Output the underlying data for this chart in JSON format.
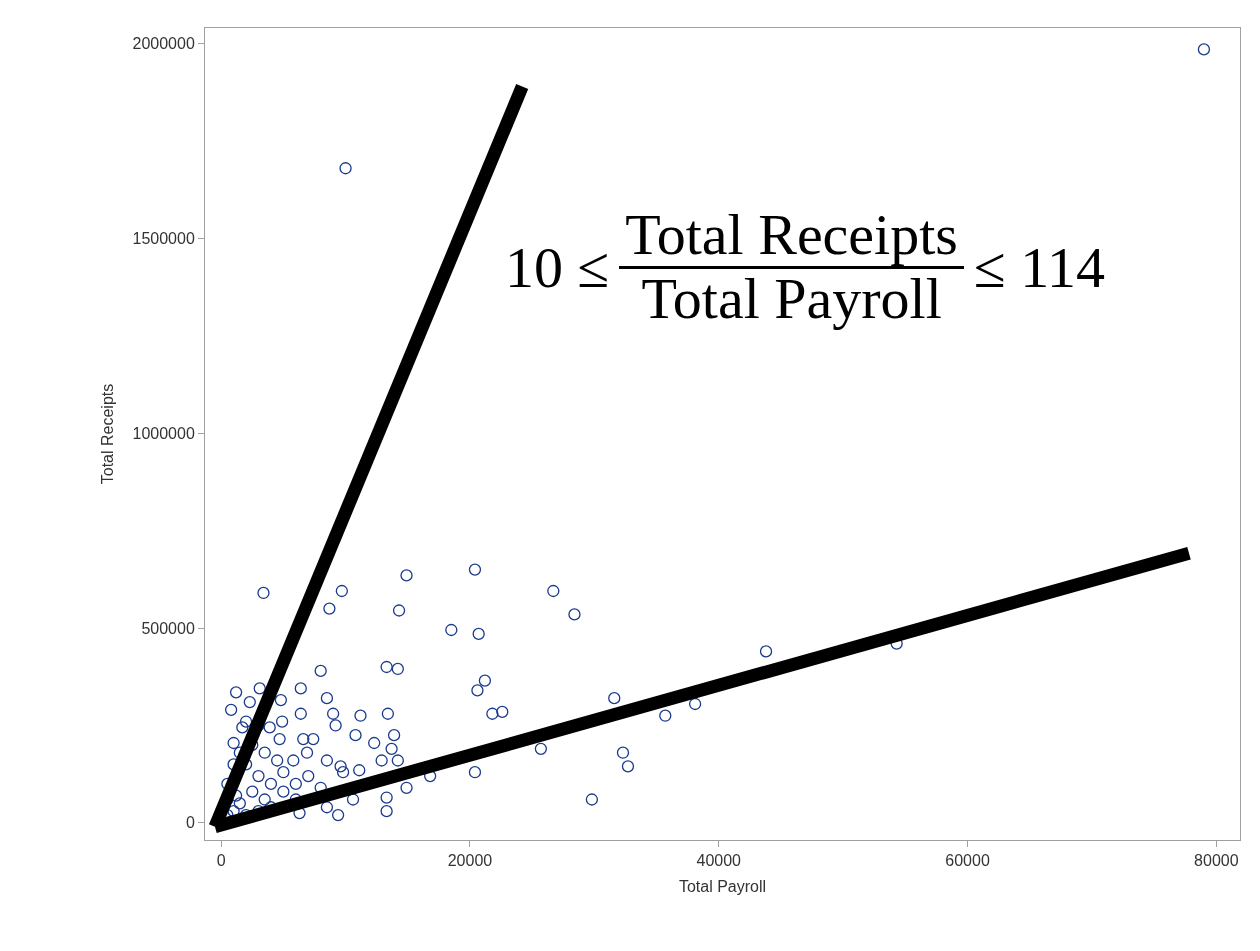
{
  "chart_data": {
    "type": "scatter",
    "xlabel": "Total Payroll",
    "ylabel": "Total Receipts",
    "xlim": [
      -1300,
      81900
    ],
    "ylim": [
      -44000,
      2040000
    ],
    "xticks": [
      0,
      20000,
      40000,
      60000,
      80000
    ],
    "yticks": [
      0,
      500000,
      1000000,
      1500000,
      2000000
    ],
    "grid": false,
    "annotations": [
      "10 ≤",
      "Total Receipts",
      "Total Payroll",
      "≤ 114"
    ],
    "series": [
      {
        "color": "#1a3a8c",
        "marker": "circle",
        "x": [
          3400,
          9700,
          8700,
          14900,
          14300,
          20400,
          26700,
          28400,
          18500,
          20700,
          8000,
          13300,
          14200,
          21200,
          20600,
          21800,
          22600,
          31600,
          1200,
          800,
          2300,
          3100,
          4800,
          6400,
          8500,
          9000,
          9200,
          6400,
          11200,
          13400,
          10800,
          12300,
          13900,
          13700,
          12900,
          14200,
          11100,
          25700,
          20400,
          16800,
          14900,
          13300,
          13300,
          29800,
          9400,
          7400,
          6600,
          4900,
          3900,
          1700,
          1000,
          9600,
          9800,
          8500,
          6900,
          5800,
          4700,
          10600,
          8500,
          6300,
          10000,
          79000,
          32300,
          32700,
          35700,
          38100,
          43800,
          54300,
          2000,
          3000,
          2500,
          1500,
          4000,
          3500,
          5000,
          500,
          1000,
          2000,
          3000,
          4000,
          5000,
          6000,
          7000,
          6000,
          500,
          1500,
          2500,
          3500,
          4500,
          3000,
          2000,
          1000,
          8000,
          500,
          1200
        ],
        "values": [
          590000,
          595000,
          550000,
          635000,
          545000,
          650000,
          595000,
          535000,
          495000,
          485000,
          390000,
          400000,
          395000,
          365000,
          340000,
          280000,
          285000,
          320000,
          335000,
          290000,
          310000,
          345000,
          315000,
          345000,
          320000,
          280000,
          250000,
          280000,
          275000,
          280000,
          225000,
          205000,
          225000,
          190000,
          160000,
          160000,
          135000,
          190000,
          130000,
          120000,
          90000,
          65000,
          30000,
          60000,
          20000,
          215000,
          215000,
          260000,
          245000,
          245000,
          205000,
          145000,
          130000,
          160000,
          180000,
          160000,
          215000,
          60000,
          40000,
          25000,
          1680000,
          1985000,
          180000,
          145000,
          275000,
          305000,
          440000,
          460000,
          150000,
          120000,
          80000,
          50000,
          100000,
          60000,
          80000,
          20000,
          30000,
          20000,
          30000,
          40000,
          130000,
          100000,
          120000,
          60000,
          60000,
          180000,
          200000,
          180000,
          160000,
          250000,
          260000,
          150000,
          90000,
          100000,
          70000
        ]
      },
      {
        "type": "line",
        "color": "#000000",
        "marker": "none",
        "x": [
          -500,
          24200
        ],
        "values": [
          -10000,
          1890000
        ]
      },
      {
        "type": "line",
        "color": "#000000",
        "marker": "none",
        "x": [
          -500,
          77800
        ],
        "values": [
          -10000,
          692000
        ]
      }
    ]
  }
}
